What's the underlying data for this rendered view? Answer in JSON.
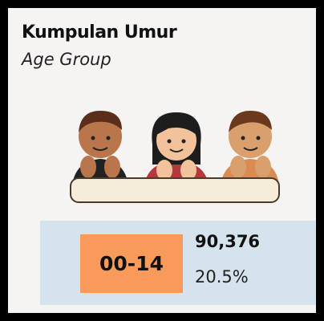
{
  "header": {
    "title": "Kumpulan Umur",
    "subtitle": "Age Group"
  },
  "stat": {
    "label": "00-14",
    "count": "90,376",
    "percent": "20.5%"
  }
}
